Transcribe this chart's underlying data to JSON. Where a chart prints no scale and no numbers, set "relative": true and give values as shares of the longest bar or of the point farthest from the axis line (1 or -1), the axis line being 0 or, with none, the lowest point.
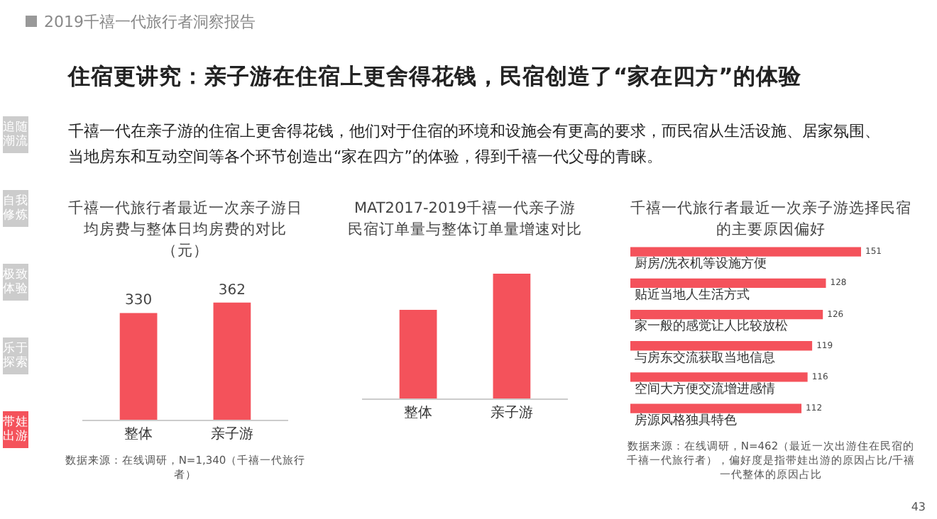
{
  "chart_data": [
    {
      "type": "other",
      "title": "住宿更讲究：亲子游在住宿上更舍得花钱，民宿创造了“家在四方”的体验",
      "subtitle": "千禧一代在亲子游的住宿上更舍得花钱，他们对于住宿的环境和设施会有更高的要求，而民宿从生活设施、居家氛围、当地房东和互动空间等各个环节创造出“家在四方”的体验，得到千禧一代父母的青睐。",
      "annotations": [
        "2019千禧一代旅行者洞察报告",
        "追随潮流",
        "自我修炼",
        "极致体验",
        "乐于探索",
        "带娃出游",
        "43"
      ]
    },
    {
      "type": "bar",
      "title": "千禧一代旅行者最近一次亲子游日均房费与整体日均房费的对比（元）",
      "categories": [
        "整体",
        "亲子游"
      ],
      "values": [
        330,
        362
      ],
      "color": "#f4525b",
      "data_labels": true,
      "annotations": [
        "数据来源：在线调研，N=1,340（千禧一代旅行者）"
      ]
    },
    {
      "type": "bar",
      "title": "MAT2017-2019千禧一代亲子游民宿订单量与整体订单量增速对比",
      "categories": [
        "整体",
        "亲子游"
      ],
      "values": [
        0.71,
        1
      ],
      "color": "#f4525b",
      "relative": true
    },
    {
      "type": "bar",
      "orientation": "horizontal",
      "title": "千禧一代旅行者最近一次亲子游选择民宿的主要原因偏好",
      "categories": [
        "厨房/洗衣机等设施方便",
        "贴近当地人生活方式",
        "家一般的感觉让人比较放松",
        "与房东交流获取当地信息",
        "空间大方便交流增进感情",
        "房源风格独具特色"
      ],
      "values": [
        151,
        128,
        126,
        119,
        116,
        112
      ],
      "color": "#f4525b",
      "data_labels": true,
      "annotations": [
        "数据来源：在线调研，N=462（最近一次出游住在民宿的千禧一代旅行者），偏好度是指带娃出游的原因占比/千禧一代整体的原因占比"
      ]
    }
  ]
}
